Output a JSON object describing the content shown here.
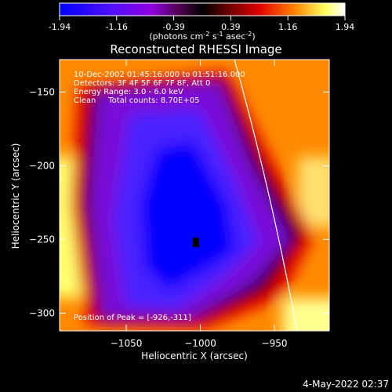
{
  "colorbar": {
    "tick_labels": [
      "-1.94",
      "-1.16",
      "-0.39",
      "0.39",
      "1.16",
      "1.94"
    ],
    "units_prefix": "(photons cm",
    "units_exp1": "-2",
    "units_mid": " s",
    "units_exp2": "-1",
    "units_suffix1": " asec",
    "units_exp3": "-2",
    "units_suffix2": ")"
  },
  "chart_data": {
    "type": "heatmap",
    "title": "Reconstructed RHESSI Image",
    "xlabel": "Heliocentric X (arcsec)",
    "ylabel": "Heliocentric Y (arcsec)",
    "xlim": [
      -1095,
      -913
    ],
    "ylim": [
      -312,
      -128
    ],
    "x_ticks": [
      -1050,
      -1000,
      -950
    ],
    "y_ticks": [
      -150,
      -200,
      -250,
      -300
    ],
    "x_tick_labels": [
      "−1050",
      "−1000",
      "−950"
    ],
    "y_tick_labels": [
      "−150",
      "−200",
      "−250",
      "−300"
    ],
    "colorbar_range": [
      -1.94,
      1.94
    ],
    "colormap": [
      "#0000ff",
      "#8000ff",
      "#400030",
      "#000000",
      "#500000",
      "#ff0000",
      "#ff8000",
      "#ffff80",
      "#ffffff"
    ],
    "annotations": [
      "10-Dec-2002 01:45:16.000 to 01:51:16.000",
      "Detectors: 3F 4F 5F 6F 7F 8F, Att 0",
      "Energy Range: 3.0 - 6.0 keV",
      "Clean     Total counts: 8.70E+05"
    ],
    "peak_label": "Position of Peak = [-926,-311]",
    "peak_position": [
      -926,
      -311
    ],
    "grid": false,
    "limb": true
  },
  "footer": {
    "timestamp": "4-May-2022 02:37"
  }
}
